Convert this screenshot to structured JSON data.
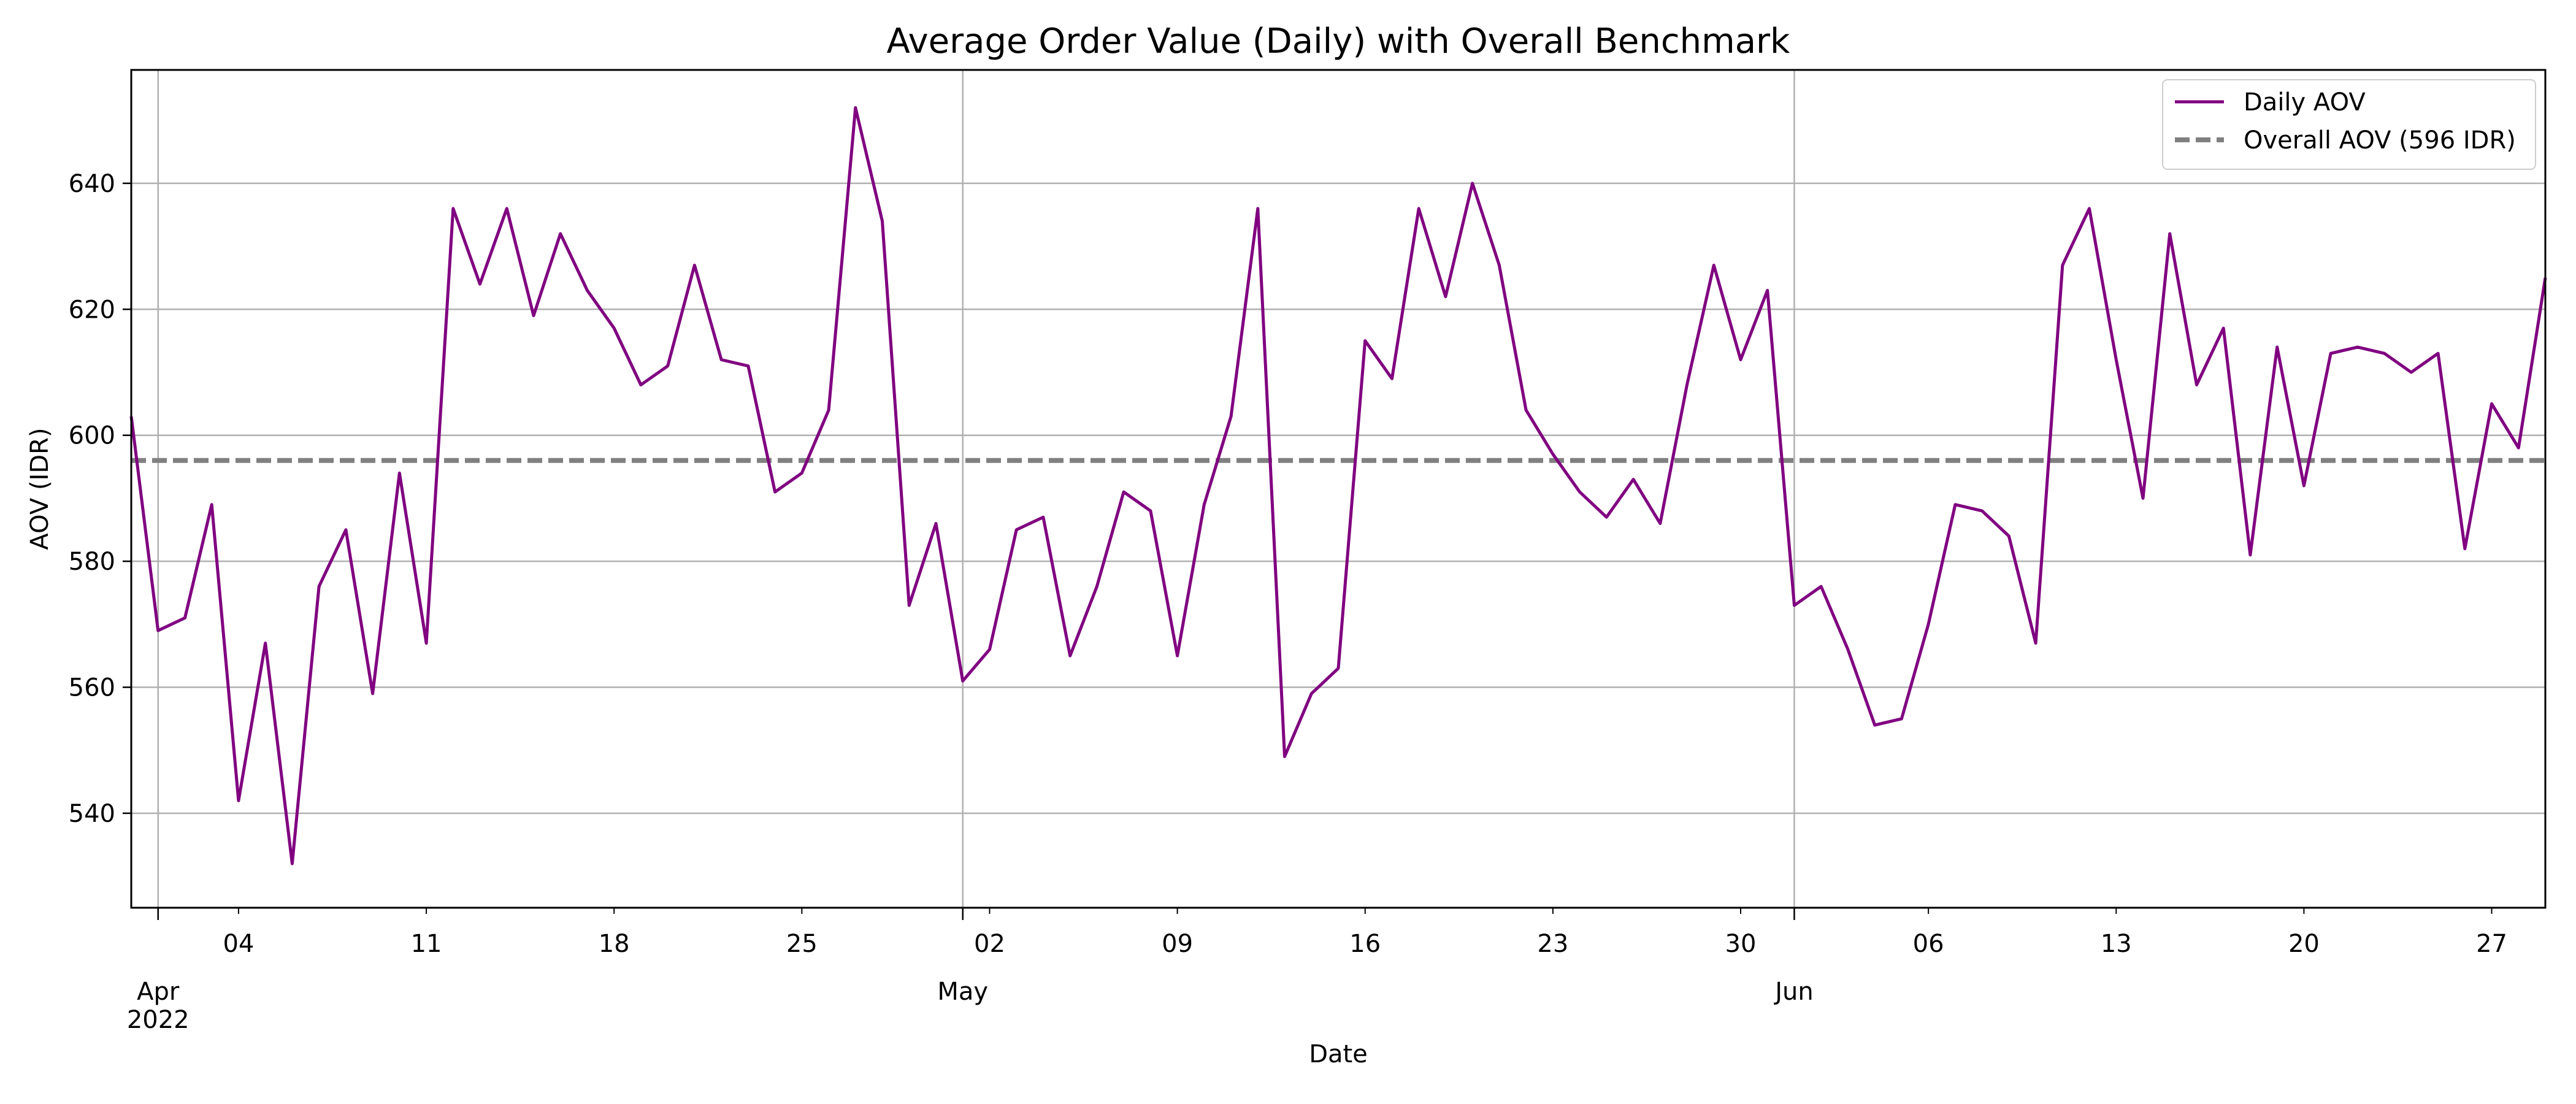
{
  "chart_data": {
    "type": "line",
    "title": "Average Order Value (Daily) with Overall Benchmark",
    "xlabel": "Date",
    "ylabel": "AOV (IDR)",
    "xlim": [
      "2022-03-31",
      "2022-06-29"
    ],
    "ylim": [
      525,
      658
    ],
    "y_ticks": [
      540,
      560,
      580,
      600,
      620,
      640
    ],
    "x_minor_ticks": [
      {
        "date": "2022-04-04",
        "label": "04"
      },
      {
        "date": "2022-04-11",
        "label": "11"
      },
      {
        "date": "2022-04-18",
        "label": "18"
      },
      {
        "date": "2022-04-25",
        "label": "25"
      },
      {
        "date": "2022-05-02",
        "label": "02"
      },
      {
        "date": "2022-05-09",
        "label": "09"
      },
      {
        "date": "2022-05-16",
        "label": "16"
      },
      {
        "date": "2022-05-23",
        "label": "23"
      },
      {
        "date": "2022-05-30",
        "label": "30"
      },
      {
        "date": "2022-06-06",
        "label": "06"
      },
      {
        "date": "2022-06-13",
        "label": "13"
      },
      {
        "date": "2022-06-20",
        "label": "20"
      },
      {
        "date": "2022-06-27",
        "label": "27"
      }
    ],
    "x_major_ticks": [
      {
        "date": "2022-04-01",
        "label": "Apr",
        "sublabel": "2022"
      },
      {
        "date": "2022-05-01",
        "label": "May",
        "sublabel": ""
      },
      {
        "date": "2022-06-01",
        "label": "Jun",
        "sublabel": ""
      }
    ],
    "grid": true,
    "legend_position": "top-right",
    "series": [
      {
        "name": "Daily AOV",
        "color": "#800080",
        "style": "solid",
        "start_date": "2022-03-31",
        "values": [
          603,
          569,
          571,
          589,
          542,
          567,
          532,
          576,
          585,
          559,
          594,
          567,
          636,
          624,
          636,
          619,
          632,
          623,
          617,
          608,
          611,
          627,
          612,
          611,
          591,
          594,
          604,
          652,
          634,
          573,
          586,
          561,
          566,
          585,
          587,
          565,
          576,
          591,
          588,
          565,
          589,
          603,
          636,
          549,
          559,
          563,
          615,
          609,
          636,
          622,
          640,
          627,
          604,
          597,
          591,
          587,
          593,
          586,
          608,
          627,
          612,
          623,
          573,
          576,
          566,
          554,
          555,
          570,
          589,
          588,
          584,
          567,
          627,
          636,
          612,
          590,
          632,
          608,
          617,
          581,
          614,
          592,
          613,
          614,
          613,
          610,
          613,
          582,
          605,
          598,
          625
        ]
      },
      {
        "name": "Overall AOV (596 IDR)",
        "color": "#808080",
        "style": "dashed",
        "constant": 596
      }
    ]
  }
}
